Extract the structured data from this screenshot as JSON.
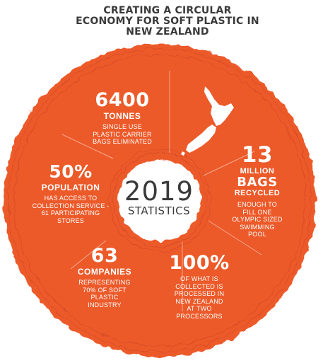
{
  "title": {
    "line1": "CREATING A CIRCULAR",
    "line2": "ECONOMY FOR SOFT PLASTIC IN",
    "line3": "NEW ZEALAND"
  },
  "center": {
    "year": "2019",
    "label": "STATISTICS"
  },
  "stats": {
    "tonnes": {
      "number": "6400",
      "label": "TONNES",
      "desc": [
        "SINGLE USE",
        "PLASTIC CARRIER",
        "BAGS ELIMINATED"
      ]
    },
    "bags": {
      "number": "13",
      "label1": "MILLION",
      "label2": "BAGS",
      "label3": "RECYCLED",
      "desc": [
        "ENOUGH TO",
        "FILL ONE",
        "OLYMPIC SIZED",
        "SWIMMING",
        "POOL"
      ]
    },
    "population": {
      "number": "50%",
      "label": "POPULATION",
      "desc": [
        "HAS ACCESS TO",
        "COLLECTION SERVICE -",
        "61 PARTICIPATING",
        "STORES"
      ]
    },
    "companies": {
      "number": "63",
      "label": "COMPANIES",
      "desc": [
        "REPRESENTING",
        "70% OF SOFT",
        "PLASTIC",
        "INDUSTRY"
      ]
    },
    "processed": {
      "number": "100%",
      "desc": [
        "OF WHAT IS",
        "COLLECTED IS",
        "PROCESSED IN",
        "NEW ZEALAND",
        "AT TWO",
        "PROCESSORS"
      ]
    }
  },
  "colors": {
    "ring": "#ec5a2c",
    "ring_dark": "#c94420",
    "divider": "#f5a88c",
    "title": "#3a3a3a",
    "text": "#ffffff"
  },
  "icons": {
    "map": "new-zealand-map-icon"
  }
}
